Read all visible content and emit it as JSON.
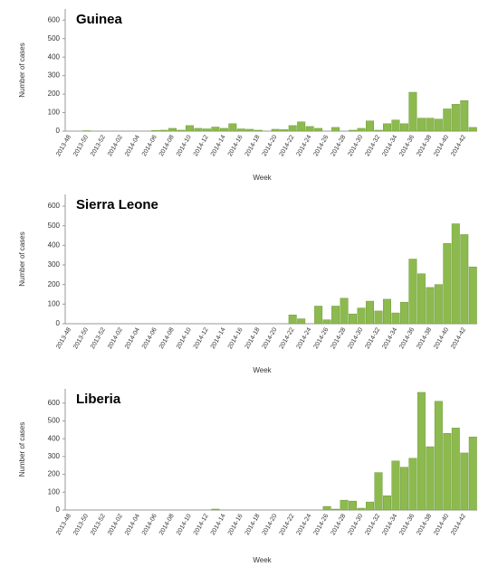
{
  "chart_data": [
    {
      "type": "bar",
      "title": "Guinea",
      "xlabel": "Week",
      "ylabel": "Number of cases",
      "color": "#8dba4f",
      "categories": [
        "2013-48",
        null,
        "2013-50",
        null,
        "2013-52",
        null,
        "2014-02",
        null,
        "2014-04",
        null,
        "2014-06",
        null,
        "2014-08",
        null,
        "2014-10",
        null,
        "2014-12",
        null,
        "2014-14",
        null,
        "2014-16",
        null,
        "2014-18",
        null,
        "2014-20",
        null,
        "2014-22",
        null,
        "2014-24",
        null,
        "2014-26",
        null,
        "2014-28",
        null,
        "2014-30",
        null,
        "2014-32",
        null,
        "2014-34",
        null,
        "2014-36",
        null,
        "2014-38",
        null,
        "2014-40",
        null,
        "2014-42",
        null
      ],
      "values": [
        0,
        0,
        2,
        0,
        0,
        0,
        0,
        0,
        0,
        0,
        3,
        5,
        15,
        5,
        30,
        15,
        12,
        22,
        15,
        40,
        12,
        10,
        5,
        0,
        10,
        8,
        30,
        50,
        25,
        15,
        0,
        20,
        0,
        5,
        15,
        55,
        5,
        40,
        60,
        40,
        210,
        70,
        70,
        65,
        120,
        145,
        165,
        20
      ],
      "ylim": [
        0,
        660
      ],
      "yticks": [
        0,
        100,
        200,
        300,
        400,
        500,
        600
      ]
    },
    {
      "type": "bar",
      "title": "Sierra Leone",
      "xlabel": "Week",
      "ylabel": "Number of cases",
      "color": "#8dba4f",
      "categories": [
        "2013-48",
        null,
        "2013-50",
        null,
        "2013-52",
        null,
        "2014-02",
        null,
        "2014-04",
        null,
        "2014-06",
        null,
        "2014-08",
        null,
        "2014-10",
        null,
        "2014-12",
        null,
        "2014-14",
        null,
        "2014-16",
        null,
        "2014-18",
        null,
        "2014-20",
        null,
        "2014-22",
        null,
        "2014-24",
        null,
        "2014-26",
        null,
        "2014-28",
        null,
        "2014-30",
        null,
        "2014-32",
        null,
        "2014-34",
        null,
        "2014-36",
        null,
        "2014-38",
        null,
        "2014-40",
        null,
        "2014-42",
        null
      ],
      "values": [
        0,
        0,
        0,
        0,
        0,
        0,
        0,
        0,
        0,
        0,
        0,
        0,
        0,
        0,
        0,
        0,
        0,
        0,
        0,
        0,
        0,
        0,
        0,
        0,
        0,
        0,
        45,
        25,
        0,
        90,
        20,
        90,
        130,
        50,
        80,
        115,
        65,
        125,
        55,
        110,
        330,
        255,
        185,
        200,
        410,
        510,
        455,
        290
      ],
      "ylim": [
        0,
        660
      ],
      "yticks": [
        0,
        100,
        200,
        300,
        400,
        500,
        600
      ]
    },
    {
      "type": "bar",
      "title": "Liberia",
      "xlabel": "Week",
      "ylabel": "Number of cases",
      "color": "#8dba4f",
      "categories": [
        "2013-48",
        null,
        "2013-50",
        null,
        "2013-52",
        null,
        "2014-02",
        null,
        "2014-04",
        null,
        "2014-06",
        null,
        "2014-08",
        null,
        "2014-10",
        null,
        "2014-12",
        null,
        "2014-14",
        null,
        "2014-16",
        null,
        "2014-18",
        null,
        "2014-20",
        null,
        "2014-22",
        null,
        "2014-24",
        null,
        "2014-26",
        null,
        "2014-28",
        null,
        "2014-30",
        null,
        "2014-32",
        null,
        "2014-34",
        null,
        "2014-36",
        null,
        "2014-38",
        null,
        "2014-40",
        null,
        "2014-42",
        null
      ],
      "values": [
        0,
        0,
        0,
        0,
        0,
        0,
        0,
        0,
        0,
        0,
        0,
        0,
        0,
        0,
        0,
        0,
        0,
        5,
        0,
        0,
        0,
        0,
        0,
        0,
        0,
        0,
        0,
        0,
        0,
        0,
        20,
        5,
        55,
        50,
        10,
        45,
        210,
        80,
        275,
        240,
        290,
        660,
        355,
        610,
        430,
        460,
        320,
        410
      ],
      "ylim": [
        0,
        680
      ],
      "yticks": [
        0,
        100,
        200,
        300,
        400,
        500,
        600
      ]
    }
  ]
}
